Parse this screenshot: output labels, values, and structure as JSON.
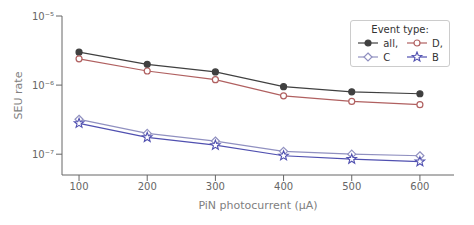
{
  "chart_data": {
    "type": "line",
    "x": [
      100,
      200,
      300,
      400,
      500,
      600
    ],
    "series": [
      {
        "name": "all,",
        "color": "#404040",
        "marker": "circle",
        "values": [
          3e-06,
          2e-06,
          1.55e-06,
          9.5e-07,
          8e-07,
          7.5e-07
        ]
      },
      {
        "name": "D,",
        "color": "#b06060",
        "marker": "open_circle",
        "values": [
          2.4e-06,
          1.6e-06,
          1.2e-06,
          7e-07,
          5.8e-07,
          5.2e-07
        ]
      },
      {
        "name": "C",
        "color": "#9090c0",
        "marker": "open_diamond",
        "values": [
          3.2e-07,
          2e-07,
          1.55e-07,
          1.1e-07,
          1e-07,
          9.5e-08
        ]
      },
      {
        "name": "B",
        "color": "#5050b0",
        "marker": "open_star",
        "values": [
          2.8e-07,
          1.75e-07,
          1.35e-07,
          9.5e-08,
          8.5e-08,
          7.8e-08
        ]
      }
    ],
    "xlabel": "PiN photocurrent (μA)",
    "ylabel": "SEU rate",
    "xlim": [
      75,
      650
    ],
    "xticks": [
      100,
      200,
      300,
      400,
      500,
      600
    ],
    "ylim": [
      5e-08,
      1e-05
    ],
    "yticks": [
      {
        "value": 1e-07,
        "label": "10⁻⁷"
      },
      {
        "value": 1e-06,
        "label": "10⁻⁶"
      },
      {
        "value": 1e-05,
        "label": "10⁻⁵"
      }
    ],
    "log": "y",
    "grid": false,
    "legend": "upper right",
    "legend_title": "Event type:"
  }
}
